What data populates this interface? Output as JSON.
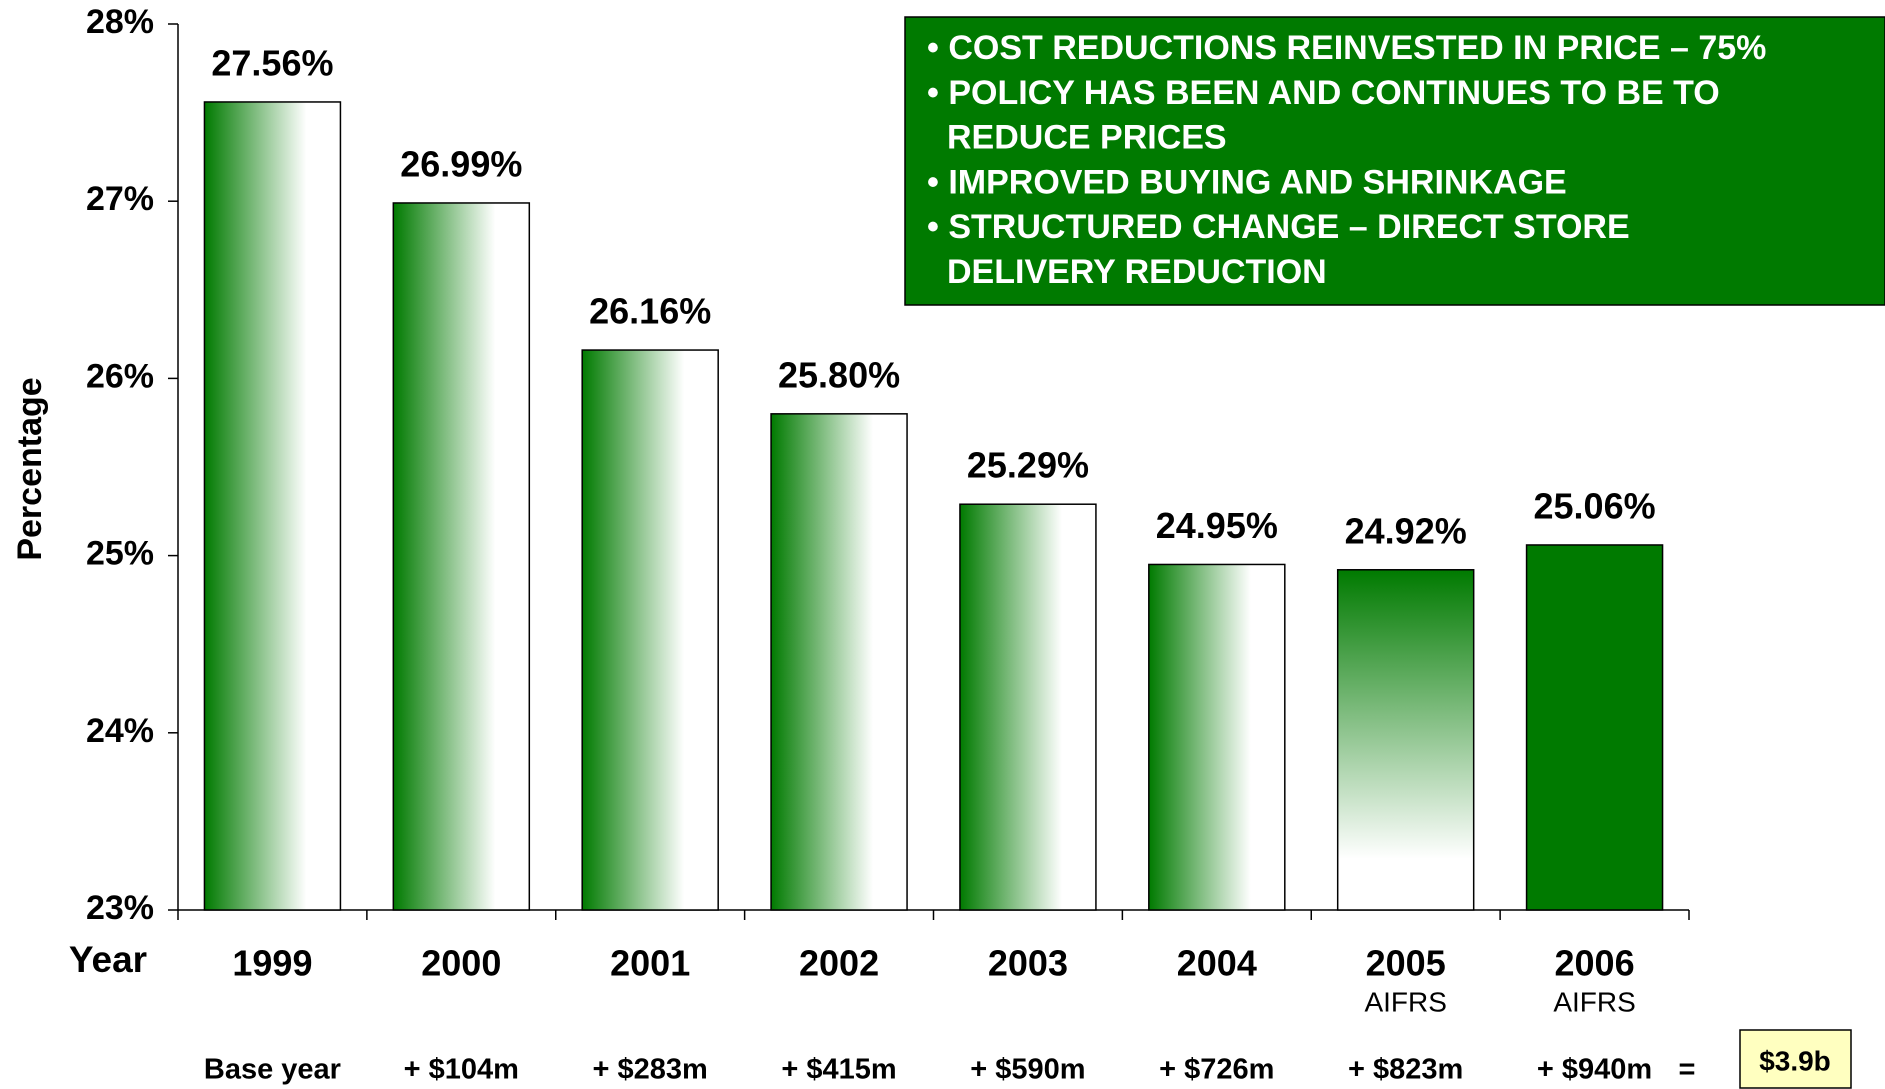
{
  "chart_data": {
    "type": "bar",
    "x_label": "Year",
    "y_label": "Percentage",
    "categories": [
      "1999",
      "2000",
      "2001",
      "2002",
      "2003",
      "2004",
      "2005",
      "2006"
    ],
    "category_notes": [
      null,
      null,
      null,
      null,
      null,
      null,
      "AIFRS",
      "AIFRS"
    ],
    "values": [
      27.56,
      26.99,
      26.16,
      25.8,
      25.29,
      24.95,
      24.92,
      25.06
    ],
    "value_labels": [
      "27.56%",
      "26.99%",
      "26.16%",
      "25.80%",
      "25.29%",
      "24.95%",
      "24.92%",
      "25.06%"
    ],
    "color": "#007a00",
    "bar_fills": [
      "horizontal",
      "horizontal",
      "horizontal",
      "horizontal",
      "horizontal",
      "horizontal",
      "vertical",
      "solid"
    ],
    "ylim": [
      23,
      28
    ],
    "yticks": [
      {
        "value": 23,
        "label": "23%"
      },
      {
        "value": 24,
        "label": "24%"
      },
      {
        "value": 25,
        "label": "25%"
      },
      {
        "value": 26,
        "label": "26%"
      },
      {
        "value": 27,
        "label": "27%"
      },
      {
        "value": 28,
        "label": "28%"
      }
    ],
    "savings": [
      "Base year",
      "+ $104m",
      "+ $283m",
      "+ $415m",
      "+ $590m",
      "+ $726m",
      "+ $823m",
      "+ $940m"
    ],
    "equals": "=",
    "total": "$3.9b",
    "annotation": [
      [
        "• COST REDUCTIONS REINVESTED IN PRICE – 75%"
      ],
      [
        "• POLICY HAS BEEN AND CONTINUES TO BE TO",
        "REDUCE PRICES"
      ],
      [
        "• IMPROVED BUYING AND SHRINKAGE"
      ],
      [
        "• STRUCTURED CHANGE – DIRECT STORE",
        "DELIVERY REDUCTION"
      ]
    ]
  }
}
